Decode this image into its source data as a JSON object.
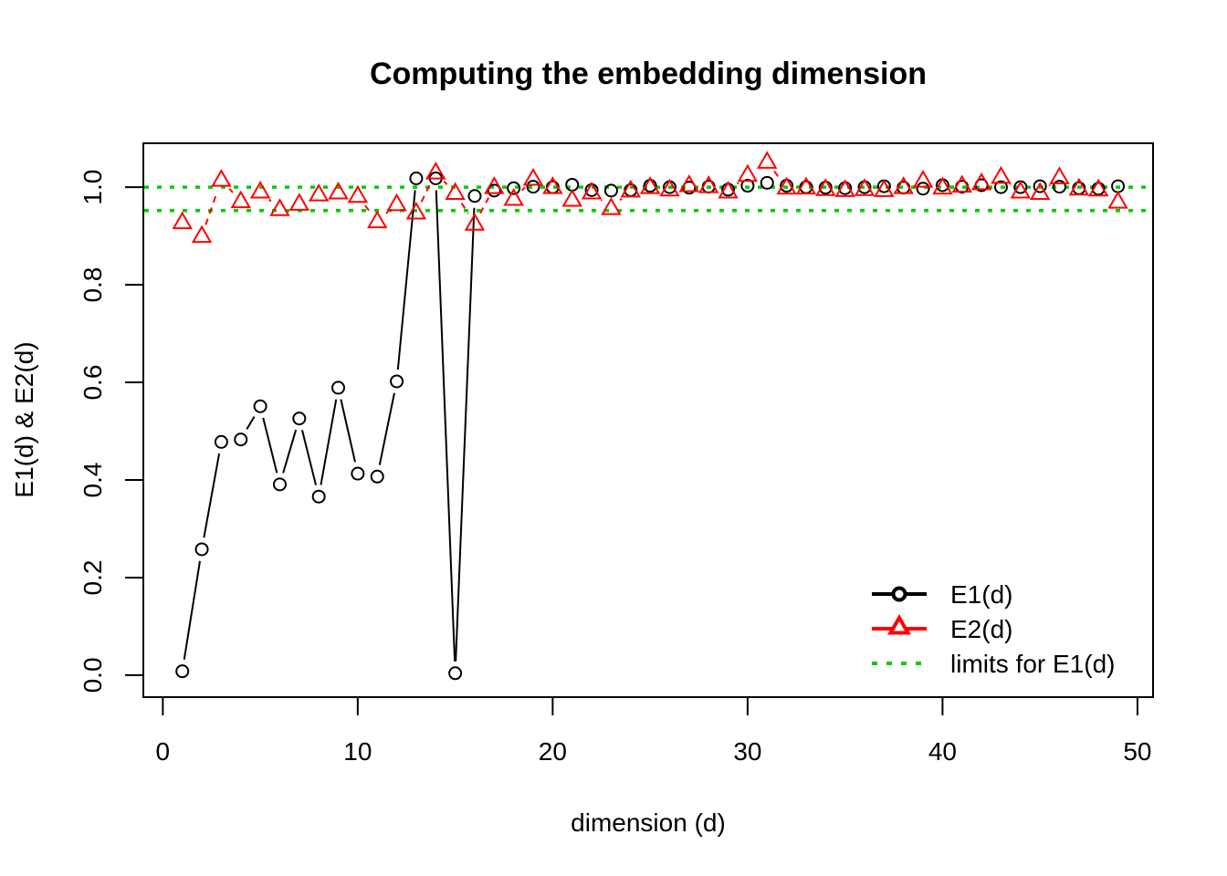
{
  "chart_data": {
    "type": "line",
    "title": "Computing the embedding dimension",
    "xlabel": "dimension (d)",
    "ylabel": "E1(d) & E2(d)",
    "xlim": [
      -1,
      50.8
    ],
    "ylim": [
      -0.045,
      1.09
    ],
    "xticks": [
      0,
      10,
      20,
      30,
      40,
      50
    ],
    "yticks": [
      0.0,
      0.2,
      0.4,
      0.6,
      0.8,
      1.0
    ],
    "xtick_labels": [
      "0",
      "10",
      "20",
      "30",
      "40",
      "50"
    ],
    "ytick_labels": [
      "0.0",
      "0.2",
      "0.4",
      "0.6",
      "0.8",
      "1.0"
    ],
    "x": [
      1,
      2,
      3,
      4,
      5,
      6,
      7,
      8,
      9,
      10,
      11,
      12,
      13,
      14,
      15,
      16,
      17,
      18,
      19,
      20,
      21,
      22,
      23,
      24,
      25,
      26,
      27,
      28,
      29,
      30,
      31,
      32,
      33,
      34,
      35,
      36,
      37,
      38,
      39,
      40,
      41,
      42,
      43,
      44,
      45,
      46,
      47,
      48,
      49
    ],
    "series": [
      {
        "name": "E1(d)",
        "color": "#000000",
        "marker": "circle",
        "values": [
          0.008,
          0.258,
          0.478,
          0.483,
          0.551,
          0.391,
          0.526,
          0.366,
          0.589,
          0.413,
          0.407,
          0.602,
          1.018,
          1.018,
          0.004,
          0.982,
          0.993,
          0.998,
          1.001,
          1.0,
          1.005,
          0.994,
          0.993,
          0.994,
          1.003,
          1.0,
          0.999,
          1.001,
          0.995,
          1.003,
          1.009,
          1.003,
          1.0,
          0.999,
          0.998,
          1.0,
          1.002,
          0.999,
          0.997,
          1.004,
          1.001,
          1.004,
          1.0,
          1.0,
          1.002,
          1.001,
          0.998,
          0.997,
          1.002
        ]
      },
      {
        "name": "E2(d)",
        "color": "#ff0000",
        "marker": "triangle",
        "values": [
          0.928,
          0.9,
          1.015,
          0.971,
          0.991,
          0.955,
          0.966,
          0.985,
          0.989,
          0.982,
          0.93,
          0.965,
          0.948,
          1.03,
          0.988,
          0.925,
          1.0,
          0.976,
          1.017,
          1.0,
          0.974,
          0.989,
          0.957,
          0.993,
          1.0,
          0.995,
          1.004,
          1.002,
          0.991,
          1.025,
          1.052,
          0.999,
          0.999,
          0.996,
          0.994,
          0.996,
          0.994,
          1.0,
          1.013,
          0.999,
          1.003,
          1.008,
          1.021,
          0.991,
          0.988,
          1.02,
          0.997,
          0.995,
          0.97
        ]
      }
    ],
    "limits": {
      "name": "limits for E1(d)",
      "color": "#00cd00",
      "values": [
        1.0,
        0.952
      ]
    },
    "legend": {
      "placement": "bottom-right",
      "entries": [
        "E1(d)",
        "E2(d)",
        "limits for E1(d)"
      ]
    },
    "grid": false
  }
}
